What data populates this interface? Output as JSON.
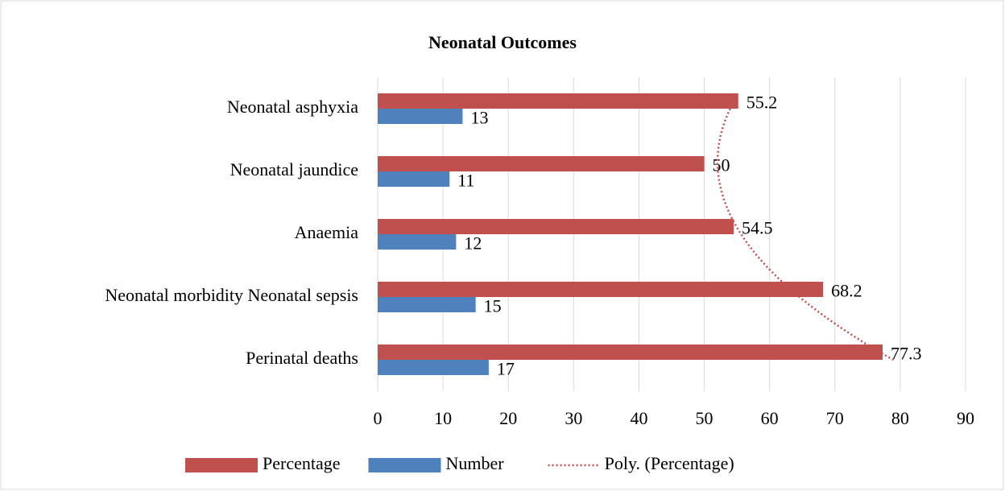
{
  "chart_data": {
    "type": "hbar",
    "title": "Neonatal Outcomes",
    "categories": [
      "Neonatal asphyxia",
      "Neonatal jaundice",
      "Anaemia",
      "Neonatal morbidity Neonatal sepsis",
      "Perinatal deaths"
    ],
    "series": [
      {
        "name": "Percentage",
        "color": "#c0504d",
        "values": [
          55.2,
          50,
          54.5,
          68.2,
          77.3
        ]
      },
      {
        "name": "Number",
        "color": "#4f81bd",
        "values": [
          13,
          11,
          12,
          15,
          17
        ]
      }
    ],
    "trendline": {
      "name": "Poly. (Percentage)",
      "color": "#c0504d",
      "series": 0,
      "order": 2
    },
    "xlim": [
      0,
      90
    ],
    "xticks": [
      0,
      10,
      20,
      30,
      40,
      50,
      60,
      70,
      80,
      90
    ],
    "grid": true,
    "legend": "bottom"
  }
}
